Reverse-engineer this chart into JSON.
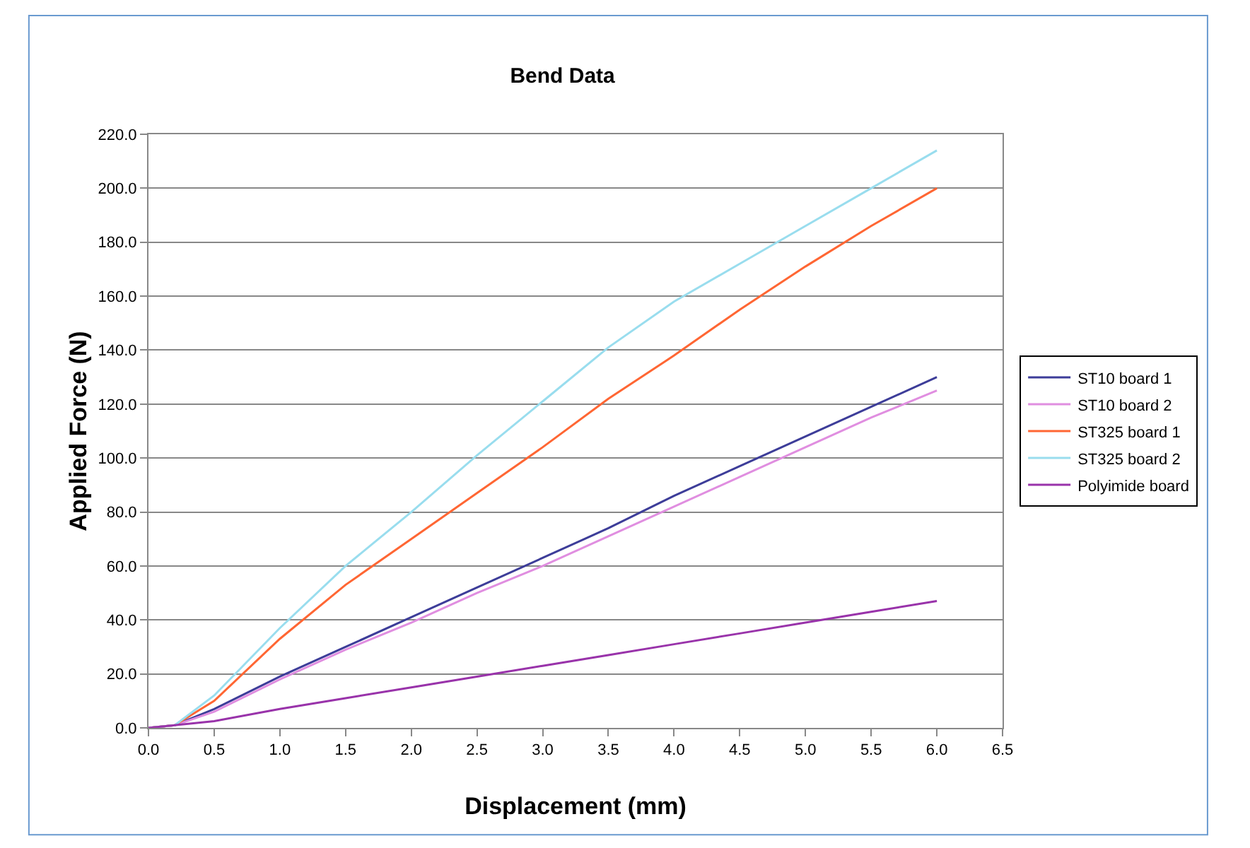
{
  "chart_data": {
    "type": "line",
    "title": "Bend Data",
    "xlabel": "Displacement (mm)",
    "ylabel": "Applied Force (N)",
    "x": [
      0,
      0.2,
      0.5,
      1,
      1.5,
      2,
      2.5,
      3,
      3.5,
      4,
      4.5,
      5,
      5.5,
      6
    ],
    "series": [
      {
        "name": "ST10 board 1",
        "color": "#3d3d99",
        "values": [
          0,
          1,
          7,
          19,
          30,
          41,
          52,
          63,
          74,
          86,
          97,
          108,
          119,
          130
        ]
      },
      {
        "name": "ST10 board 2",
        "color": "#e08ee0",
        "values": [
          0,
          1,
          6,
          18,
          29,
          39,
          50,
          60,
          71,
          82,
          93,
          104,
          115,
          125
        ]
      },
      {
        "name": "ST325 board 1",
        "color": "#ff6633",
        "values": [
          0,
          1,
          10,
          33,
          53,
          70,
          87,
          104,
          122,
          138,
          155,
          171,
          186,
          200
        ]
      },
      {
        "name": "ST325 board 2",
        "color": "#99ddee",
        "values": [
          0,
          1,
          12,
          37,
          60,
          80,
          101,
          121,
          141,
          158,
          172,
          186,
          200,
          214
        ]
      },
      {
        "name": "Polyimide board",
        "color": "#9933aa",
        "values": [
          0,
          1,
          2.5,
          7,
          11,
          15,
          19,
          23,
          27,
          31,
          35,
          39,
          43,
          47
        ]
      }
    ],
    "xlim": [
      0,
      6.5
    ],
    "ylim": [
      0,
      220
    ],
    "xticks": [
      {
        "value": 0,
        "label": "0.0"
      },
      {
        "value": 0.5,
        "label": "0.5"
      },
      {
        "value": 1,
        "label": "1.0"
      },
      {
        "value": 1.5,
        "label": "1.5"
      },
      {
        "value": 2,
        "label": "2.0"
      },
      {
        "value": 2.5,
        "label": "2.5"
      },
      {
        "value": 3,
        "label": "3.0"
      },
      {
        "value": 3.5,
        "label": "3.5"
      },
      {
        "value": 4,
        "label": "4.0"
      },
      {
        "value": 4.5,
        "label": "4.5"
      },
      {
        "value": 5,
        "label": "5.0"
      },
      {
        "value": 5.5,
        "label": "5.5"
      },
      {
        "value": 6,
        "label": "6.0"
      },
      {
        "value": 6.5,
        "label": "6.5"
      }
    ],
    "yticks": [
      {
        "value": 0,
        "label": "0.0"
      },
      {
        "value": 20,
        "label": "20.0"
      },
      {
        "value": 40,
        "label": "40.0"
      },
      {
        "value": 60,
        "label": "60.0"
      },
      {
        "value": 80,
        "label": "80.0"
      },
      {
        "value": 100,
        "label": "100.0"
      },
      {
        "value": 120,
        "label": "120.0"
      },
      {
        "value": 140,
        "label": "140.0"
      },
      {
        "value": 160,
        "label": "160.0"
      },
      {
        "value": 180,
        "label": "180.0"
      },
      {
        "value": 200,
        "label": "200.0"
      },
      {
        "value": 220,
        "label": "220.0"
      }
    ],
    "grid": "y",
    "legend": "right",
    "marker": "none",
    "line_style": "solid"
  }
}
